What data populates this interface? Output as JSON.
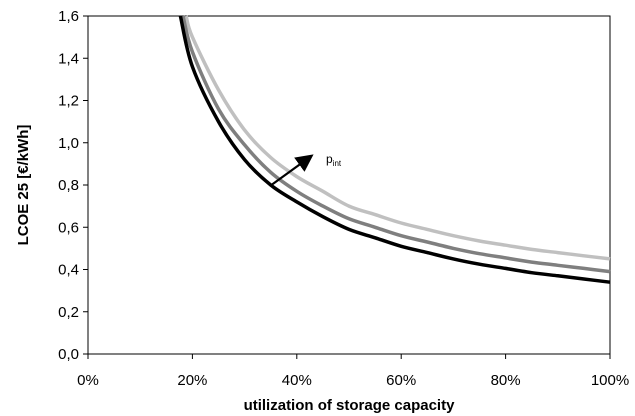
{
  "chart_data": {
    "type": "line",
    "xlabel": "utilization  of storage capacity",
    "ylabel": "LCOE 25 [€/kWh]",
    "xlim": [
      0,
      100
    ],
    "ylim": [
      0,
      1.6
    ],
    "x_ticks": [
      "0%",
      "20%",
      "40%",
      "60%",
      "80%",
      "100%"
    ],
    "y_ticks": [
      "0,0",
      "0,2",
      "0,4",
      "0,6",
      "0,8",
      "1,0",
      "1,2",
      "1,4",
      "1,6"
    ],
    "grid": false,
    "annotation": {
      "text_main": "p",
      "text_sub": "int"
    },
    "series": [
      {
        "color": "#000000",
        "x": [
          17.7,
          20,
          25,
          30,
          35,
          40,
          45,
          50,
          55,
          60,
          65,
          70,
          75,
          80,
          85,
          90,
          95,
          100
        ],
        "y": [
          1.6,
          1.36,
          1.1,
          0.92,
          0.8,
          0.72,
          0.65,
          0.59,
          0.55,
          0.51,
          0.48,
          0.45,
          0.425,
          0.405,
          0.385,
          0.37,
          0.355,
          0.34
        ]
      },
      {
        "color": "#7f7f7f",
        "x": [
          18.2,
          20,
          25,
          30,
          35,
          40,
          45,
          50,
          55,
          60,
          65,
          70,
          75,
          80,
          85,
          90,
          95,
          100
        ],
        "y": [
          1.6,
          1.43,
          1.16,
          0.99,
          0.86,
          0.77,
          0.7,
          0.64,
          0.6,
          0.56,
          0.53,
          0.5,
          0.475,
          0.455,
          0.435,
          0.42,
          0.405,
          0.39
        ]
      },
      {
        "color": "#c0c0c0",
        "x": [
          18.8,
          20,
          25,
          30,
          35,
          40,
          45,
          50,
          55,
          60,
          65,
          70,
          75,
          80,
          85,
          90,
          95,
          100
        ],
        "y": [
          1.6,
          1.5,
          1.25,
          1.06,
          0.93,
          0.84,
          0.77,
          0.7,
          0.66,
          0.62,
          0.59,
          0.56,
          0.535,
          0.515,
          0.495,
          0.48,
          0.465,
          0.45
        ]
      }
    ]
  }
}
